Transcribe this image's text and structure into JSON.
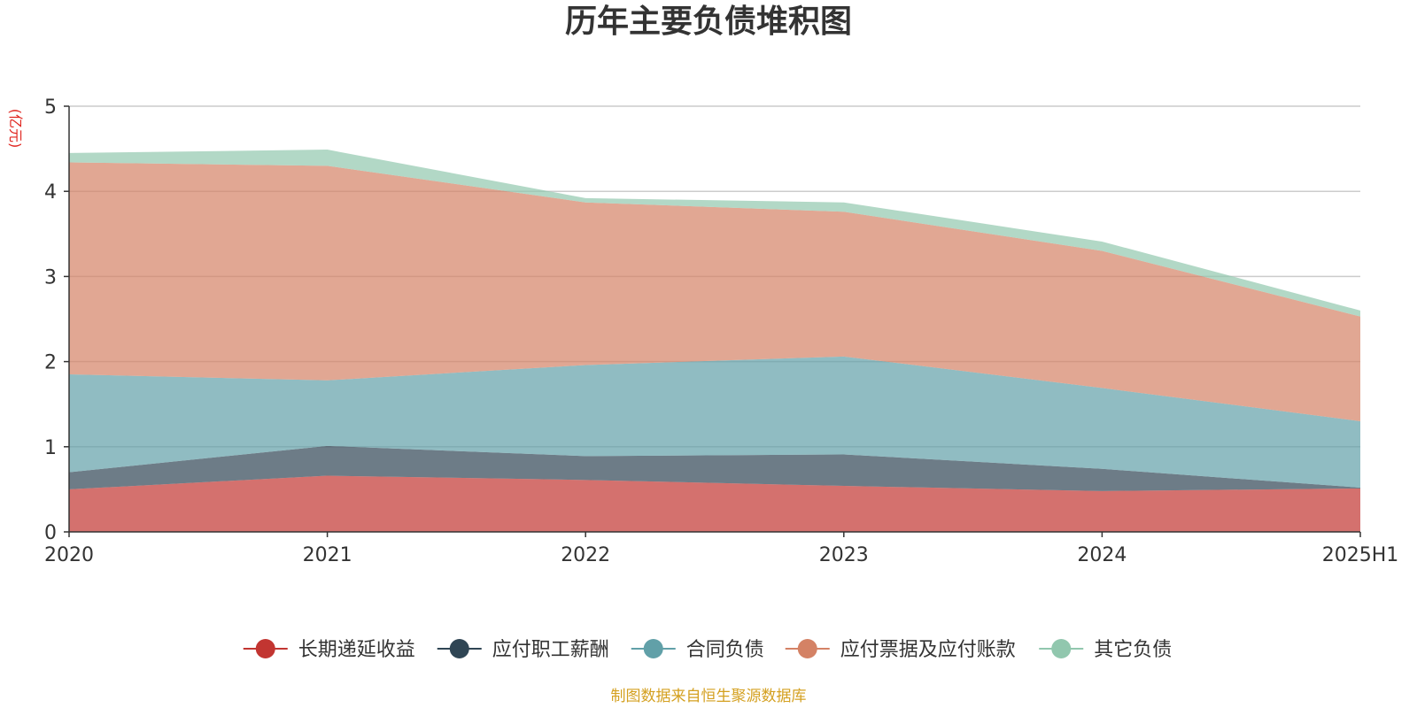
{
  "chart_data": {
    "type": "area",
    "stacked": true,
    "title": "历年主要负债堆积图",
    "unit": "(亿元)",
    "categories": [
      "2020",
      "2021",
      "2022",
      "2023",
      "2024",
      "2025H1"
    ],
    "ylim": [
      0,
      5
    ],
    "yticks": [
      0,
      1,
      2,
      3,
      4,
      5
    ],
    "grid": true,
    "legend_position": "bottom",
    "series": [
      {
        "name": "长期递延收益",
        "color": "#c23531",
        "values": [
          0.5,
          0.66,
          0.61,
          0.54,
          0.48,
          0.51
        ]
      },
      {
        "name": "应付职工薪酬",
        "color": "#2f4554",
        "values": [
          0.2,
          0.35,
          0.28,
          0.37,
          0.26,
          0.01
        ]
      },
      {
        "name": "合同负债",
        "color": "#61a0a8",
        "values": [
          1.15,
          0.77,
          1.07,
          1.15,
          0.95,
          0.78
        ]
      },
      {
        "name": "应付票据及应付账款",
        "color": "#d48265",
        "values": [
          2.49,
          2.52,
          1.91,
          1.7,
          1.61,
          1.23
        ]
      },
      {
        "name": "其它负债",
        "color": "#91c7ae",
        "values": [
          0.11,
          0.19,
          0.05,
          0.11,
          0.11,
          0.07
        ]
      }
    ],
    "source": "制图数据来自恒生聚源数据库"
  }
}
